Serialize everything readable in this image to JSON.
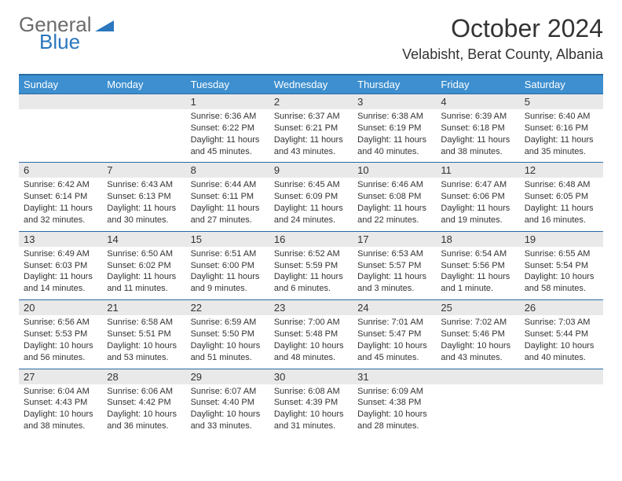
{
  "logo": {
    "text1": "General",
    "text2": "Blue",
    "shape_color": "#2a77bd",
    "text1_color": "#6b6b6b"
  },
  "title": {
    "month": "October 2024",
    "location": "Velabisht, Berat County, Albania"
  },
  "colors": {
    "header_bg": "#3d8fcf",
    "header_border": "#2a6aa3",
    "daynum_bg": "#e9e9e9",
    "text": "#333333",
    "page_bg": "#ffffff"
  },
  "day_headers": [
    "Sunday",
    "Monday",
    "Tuesday",
    "Wednesday",
    "Thursday",
    "Friday",
    "Saturday"
  ],
  "weeks": [
    [
      {
        "num": "",
        "lines": []
      },
      {
        "num": "",
        "lines": []
      },
      {
        "num": "1",
        "lines": [
          "Sunrise: 6:36 AM",
          "Sunset: 6:22 PM",
          "Daylight: 11 hours",
          "and 45 minutes."
        ]
      },
      {
        "num": "2",
        "lines": [
          "Sunrise: 6:37 AM",
          "Sunset: 6:21 PM",
          "Daylight: 11 hours",
          "and 43 minutes."
        ]
      },
      {
        "num": "3",
        "lines": [
          "Sunrise: 6:38 AM",
          "Sunset: 6:19 PM",
          "Daylight: 11 hours",
          "and 40 minutes."
        ]
      },
      {
        "num": "4",
        "lines": [
          "Sunrise: 6:39 AM",
          "Sunset: 6:18 PM",
          "Daylight: 11 hours",
          "and 38 minutes."
        ]
      },
      {
        "num": "5",
        "lines": [
          "Sunrise: 6:40 AM",
          "Sunset: 6:16 PM",
          "Daylight: 11 hours",
          "and 35 minutes."
        ]
      }
    ],
    [
      {
        "num": "6",
        "lines": [
          "Sunrise: 6:42 AM",
          "Sunset: 6:14 PM",
          "Daylight: 11 hours",
          "and 32 minutes."
        ]
      },
      {
        "num": "7",
        "lines": [
          "Sunrise: 6:43 AM",
          "Sunset: 6:13 PM",
          "Daylight: 11 hours",
          "and 30 minutes."
        ]
      },
      {
        "num": "8",
        "lines": [
          "Sunrise: 6:44 AM",
          "Sunset: 6:11 PM",
          "Daylight: 11 hours",
          "and 27 minutes."
        ]
      },
      {
        "num": "9",
        "lines": [
          "Sunrise: 6:45 AM",
          "Sunset: 6:09 PM",
          "Daylight: 11 hours",
          "and 24 minutes."
        ]
      },
      {
        "num": "10",
        "lines": [
          "Sunrise: 6:46 AM",
          "Sunset: 6:08 PM",
          "Daylight: 11 hours",
          "and 22 minutes."
        ]
      },
      {
        "num": "11",
        "lines": [
          "Sunrise: 6:47 AM",
          "Sunset: 6:06 PM",
          "Daylight: 11 hours",
          "and 19 minutes."
        ]
      },
      {
        "num": "12",
        "lines": [
          "Sunrise: 6:48 AM",
          "Sunset: 6:05 PM",
          "Daylight: 11 hours",
          "and 16 minutes."
        ]
      }
    ],
    [
      {
        "num": "13",
        "lines": [
          "Sunrise: 6:49 AM",
          "Sunset: 6:03 PM",
          "Daylight: 11 hours",
          "and 14 minutes."
        ]
      },
      {
        "num": "14",
        "lines": [
          "Sunrise: 6:50 AM",
          "Sunset: 6:02 PM",
          "Daylight: 11 hours",
          "and 11 minutes."
        ]
      },
      {
        "num": "15",
        "lines": [
          "Sunrise: 6:51 AM",
          "Sunset: 6:00 PM",
          "Daylight: 11 hours",
          "and 9 minutes."
        ]
      },
      {
        "num": "16",
        "lines": [
          "Sunrise: 6:52 AM",
          "Sunset: 5:59 PM",
          "Daylight: 11 hours",
          "and 6 minutes."
        ]
      },
      {
        "num": "17",
        "lines": [
          "Sunrise: 6:53 AM",
          "Sunset: 5:57 PM",
          "Daylight: 11 hours",
          "and 3 minutes."
        ]
      },
      {
        "num": "18",
        "lines": [
          "Sunrise: 6:54 AM",
          "Sunset: 5:56 PM",
          "Daylight: 11 hours",
          "and 1 minute."
        ]
      },
      {
        "num": "19",
        "lines": [
          "Sunrise: 6:55 AM",
          "Sunset: 5:54 PM",
          "Daylight: 10 hours",
          "and 58 minutes."
        ]
      }
    ],
    [
      {
        "num": "20",
        "lines": [
          "Sunrise: 6:56 AM",
          "Sunset: 5:53 PM",
          "Daylight: 10 hours",
          "and 56 minutes."
        ]
      },
      {
        "num": "21",
        "lines": [
          "Sunrise: 6:58 AM",
          "Sunset: 5:51 PM",
          "Daylight: 10 hours",
          "and 53 minutes."
        ]
      },
      {
        "num": "22",
        "lines": [
          "Sunrise: 6:59 AM",
          "Sunset: 5:50 PM",
          "Daylight: 10 hours",
          "and 51 minutes."
        ]
      },
      {
        "num": "23",
        "lines": [
          "Sunrise: 7:00 AM",
          "Sunset: 5:48 PM",
          "Daylight: 10 hours",
          "and 48 minutes."
        ]
      },
      {
        "num": "24",
        "lines": [
          "Sunrise: 7:01 AM",
          "Sunset: 5:47 PM",
          "Daylight: 10 hours",
          "and 45 minutes."
        ]
      },
      {
        "num": "25",
        "lines": [
          "Sunrise: 7:02 AM",
          "Sunset: 5:46 PM",
          "Daylight: 10 hours",
          "and 43 minutes."
        ]
      },
      {
        "num": "26",
        "lines": [
          "Sunrise: 7:03 AM",
          "Sunset: 5:44 PM",
          "Daylight: 10 hours",
          "and 40 minutes."
        ]
      }
    ],
    [
      {
        "num": "27",
        "lines": [
          "Sunrise: 6:04 AM",
          "Sunset: 4:43 PM",
          "Daylight: 10 hours",
          "and 38 minutes."
        ]
      },
      {
        "num": "28",
        "lines": [
          "Sunrise: 6:06 AM",
          "Sunset: 4:42 PM",
          "Daylight: 10 hours",
          "and 36 minutes."
        ]
      },
      {
        "num": "29",
        "lines": [
          "Sunrise: 6:07 AM",
          "Sunset: 4:40 PM",
          "Daylight: 10 hours",
          "and 33 minutes."
        ]
      },
      {
        "num": "30",
        "lines": [
          "Sunrise: 6:08 AM",
          "Sunset: 4:39 PM",
          "Daylight: 10 hours",
          "and 31 minutes."
        ]
      },
      {
        "num": "31",
        "lines": [
          "Sunrise: 6:09 AM",
          "Sunset: 4:38 PM",
          "Daylight: 10 hours",
          "and 28 minutes."
        ]
      },
      {
        "num": "",
        "lines": []
      },
      {
        "num": "",
        "lines": []
      }
    ]
  ]
}
